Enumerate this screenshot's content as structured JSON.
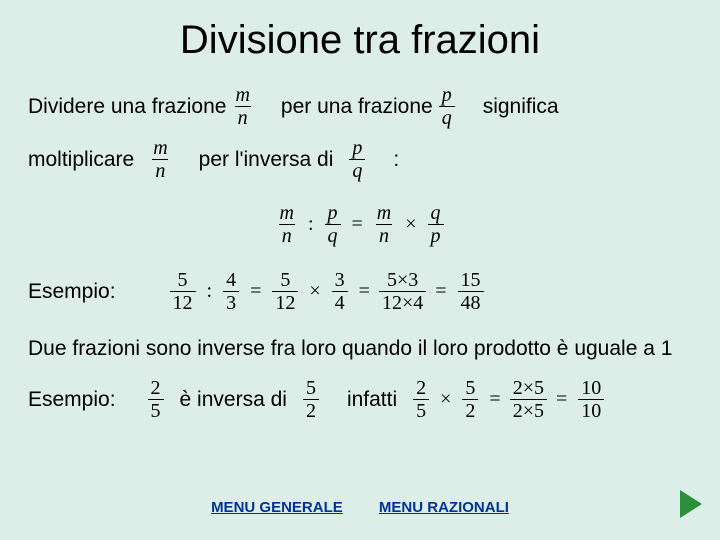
{
  "title": "Divisione tra frazioni",
  "line1": {
    "t1": "Dividere una frazione",
    "f1n": "m",
    "f1d": "n",
    "t2": "per una frazione",
    "f2n": "p",
    "f2d": "q",
    "t3": "significa"
  },
  "line2": {
    "t1": "moltiplicare",
    "f1n": "m",
    "f1d": "n",
    "t2": "per l'inversa di",
    "f2n": "p",
    "f2d": "q",
    "t3": ":"
  },
  "eq1": {
    "a_n": "m",
    "a_d": "n",
    "b_n": "p",
    "b_d": "q",
    "c_n": "m",
    "c_d": "n",
    "d_n": "q",
    "d_d": "p"
  },
  "example1_label": "Esempio:",
  "ex1": {
    "a_n": "5",
    "a_d": "12",
    "b_n": "4",
    "b_d": "3",
    "c_n": "5",
    "c_d": "12",
    "d_n": "3",
    "d_d": "4",
    "e_n": "5×3",
    "e_d": "12×4",
    "f_n": "15",
    "f_d": "48"
  },
  "body": "Due frazioni sono inverse fra loro quando il loro prodotto è uguale a 1",
  "example2_label": "Esempio:",
  "ex2": {
    "a_n": "2",
    "a_d": "5",
    "t1": "è inversa di",
    "b_n": "5",
    "b_d": "2",
    "t2": "infatti",
    "c_n": "2",
    "c_d": "5",
    "d_n": "5",
    "d_d": "2",
    "e_n": "2×5",
    "e_d": "2×5",
    "f_n": "10",
    "f_d": "10"
  },
  "menu1": "MENU GENERALE",
  "menu2": "MENU RAZIONALI"
}
